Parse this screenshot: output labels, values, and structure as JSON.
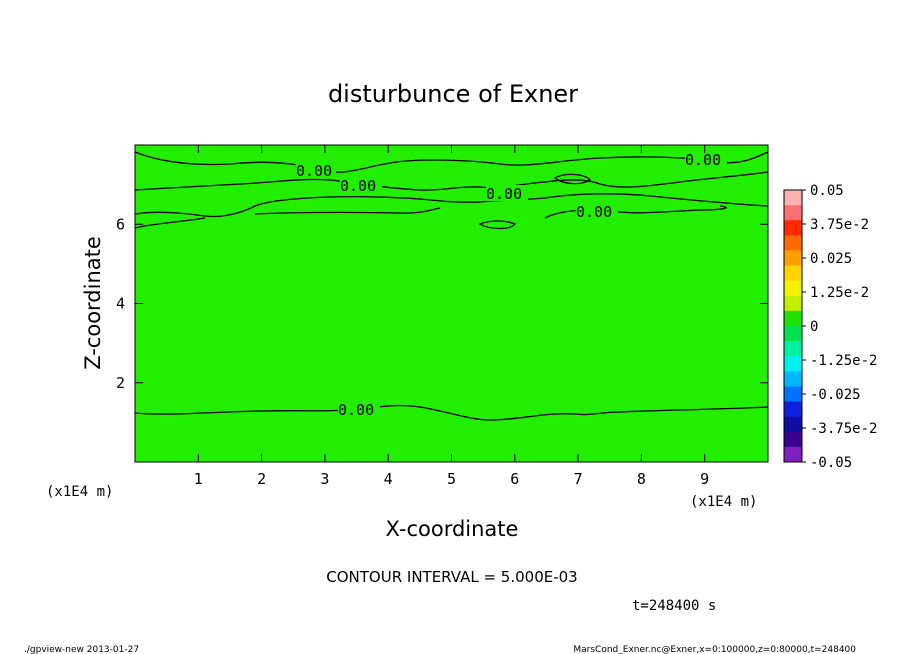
{
  "chart_data": {
    "type": "contour",
    "title": "disturbunce of Exner",
    "xlabel": "X-coordinate",
    "ylabel": "Z-coordinate",
    "x_unit": "(x1E4 m)",
    "y_unit": "(x1E4 m)",
    "xlim": [
      0,
      10
    ],
    "ylim": [
      0,
      8
    ],
    "x_ticks": [
      "1",
      "2",
      "3",
      "4",
      "5",
      "6",
      "7",
      "8",
      "9"
    ],
    "y_ticks": [
      "2",
      "4",
      "6"
    ],
    "contour_interval_text": "CONTOUR INTERVAL = 5.000E-03",
    "contour_labels": [
      "0.00",
      "0.00",
      "0.00",
      "0.00",
      "0.00",
      "0.00"
    ],
    "colorbar": {
      "levels": [
        "0.05",
        "3.75e-2",
        "0.025",
        "1.25e-2",
        "0",
        "-1.25e-2",
        "-0.025",
        "-3.75e-2",
        "-0.05"
      ],
      "colors": [
        "#ffb0b0",
        "#ff7070",
        "#ff2a00",
        "#ff6a00",
        "#ffa000",
        "#ffd400",
        "#f2f200",
        "#c0f000",
        "#20e000",
        "#00e050",
        "#00f0a0",
        "#00f0f0",
        "#00b8ff",
        "#0070ff",
        "#1020e0",
        "#1010a0",
        "#3a0090",
        "#8020c0"
      ]
    },
    "field_color": "#22ee00",
    "time_text": "t=248400 s"
  },
  "footer": {
    "left": "./gpview-new  2013-01-27",
    "right": "MarsCond_Exner.nc@Exner,x=0:100000,z=0:80000,t=248400"
  }
}
